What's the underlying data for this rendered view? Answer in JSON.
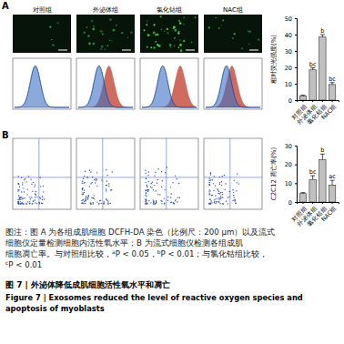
{
  "panel_labels": [
    "A",
    "B"
  ],
  "image_labels": [
    "对照组",
    "外泌体组",
    "氯化钴组",
    "NAC组"
  ],
  "chart_data": [
    {
      "type": "bar",
      "ylabel": "相对荧光强度(%)",
      "categories": [
        "对照组",
        "外泌体组",
        "氯化钴组",
        "NAC组"
      ],
      "values": [
        2.5,
        18.5,
        38.5,
        9.5
      ],
      "errors": [
        0.5,
        1.2,
        1.5,
        1.2
      ],
      "color": "#c0c0c0",
      "ylim": [
        0,
        50
      ],
      "yticks": [
        0,
        10,
        20,
        30,
        40,
        50
      ],
      "annotations": [
        {
          "x": 1,
          "text": "bc"
        },
        {
          "x": 2,
          "text": "b"
        },
        {
          "x": 3,
          "text": "bc"
        }
      ]
    },
    {
      "type": "bar",
      "ylabel": "C2C12 凋亡率(%)",
      "categories": [
        "对照组",
        "外泌体组",
        "氯化钴组",
        "NAC组"
      ],
      "values": [
        4.5,
        12,
        22.5,
        9
      ],
      "errors": [
        0.5,
        2,
        3,
        2.5
      ],
      "color": "#c0c0c0",
      "ylim": [
        0,
        30
      ],
      "yticks": [
        0,
        10,
        20,
        30
      ],
      "annotations": [
        {
          "x": 1,
          "text": "bc"
        },
        {
          "x": 2,
          "text": "b"
        },
        {
          "x": 3,
          "text": "ac"
        }
      ]
    }
  ],
  "caption": [
    [
      {
        "text": "图注：图 A 为各组成肌细胞 DCFH-DA 染色（比例尺：200 μm）以及流式"
      }
    ],
    [
      {
        "text": "细胞仪定量检测细胞内活性氧水平；B 为流式细胞仪检测各组成肌"
      }
    ],
    [
      {
        "text": "细胞凋亡率。与对照组比较，"
      },
      {
        "sup": "a"
      },
      {
        "text": "P < 0.05，"
      },
      {
        "sup": "b"
      },
      {
        "text": "P < 0.01；与氯化钴组比较，"
      }
    ],
    [
      {
        "sup": "c"
      },
      {
        "text": "P < 0.01"
      }
    ]
  ],
  "figure_title": "图 7 | 外泌体降低成肌细胞活性氧水平和凋亡",
  "figure_title_en": [
    "Figure 7 | Exosomes reduced the level of reactive oxygen species and",
    "apoptosis of myoblasts"
  ]
}
